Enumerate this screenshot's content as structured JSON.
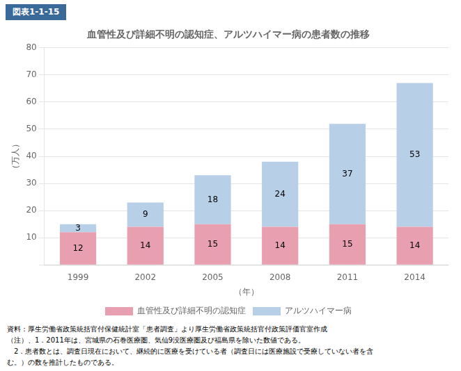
{
  "chart_data": {
    "type": "bar",
    "title": "血管性及び詳細不明の認知症、アルツハイマー病の患者数の推移",
    "annotations": [
      "図表1-1-15",
      "資料：厚生労働省政策統括官付保健統計室「患者調査」より厚生労働省政策統括官付政策評価官室作成",
      "（注）、1．2011年は、宮城県の石巻医療圏、気仙9没医療圏及び福島県を除いた数値である。",
      "　2．患者数とは、調査日現在において、継続的に医療を受けている者（調査日には医療施設で受療していない者を含",
      "む。）の数を推計したものである。"
    ],
    "xlabel": "（年）",
    "ylabel": "（万人）",
    "categories": [
      "1999",
      "2002",
      "2005",
      "2008",
      "2011",
      "2014"
    ],
    "series": [
      {
        "name": "血管性及び詳細不明の認知症",
        "color": "#e8a0b0",
        "values": [
          12,
          14,
          15,
          14,
          15,
          14
        ]
      },
      {
        "name": "アルツハイマー病",
        "color": "#b8cfe8",
        "values": [
          3,
          9,
          18,
          24,
          37,
          53
        ]
      }
    ],
    "stacked": true,
    "data_labels": true,
    "ylim": [
      0,
      80
    ],
    "yticks": [
      {
        "value": 0,
        "label": ""
      },
      10,
      20,
      30,
      40,
      50,
      60,
      70,
      80
    ],
    "grid": true,
    "legend": "bottom"
  }
}
